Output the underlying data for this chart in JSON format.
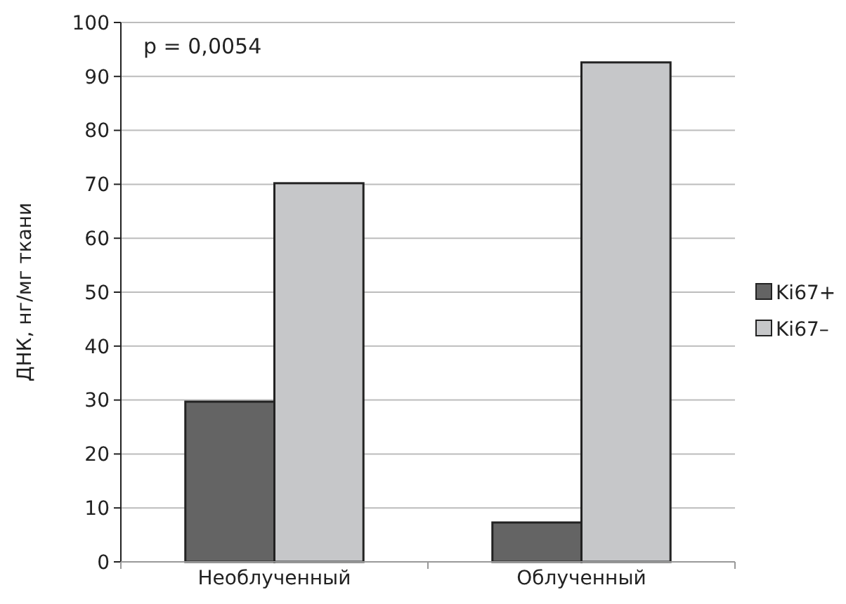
{
  "chart_data": {
    "type": "bar",
    "ylabel": "ДНК, нг/мг ткани",
    "categories": [
      "Необлученный",
      "Облученный"
    ],
    "series": [
      {
        "name": "Ki67+",
        "color": "#646464",
        "values": [
          29.7,
          7.3
        ]
      },
      {
        "name": "Ki67–",
        "color": "#c6c7c9",
        "values": [
          70.2,
          92.6
        ]
      }
    ],
    "ylim": [
      0,
      100
    ],
    "yticks": [
      0,
      10,
      20,
      30,
      40,
      50,
      60,
      70,
      80,
      90,
      100
    ],
    "grid": "y",
    "legend": "right",
    "annotations": [
      "p = 0,0054"
    ]
  }
}
